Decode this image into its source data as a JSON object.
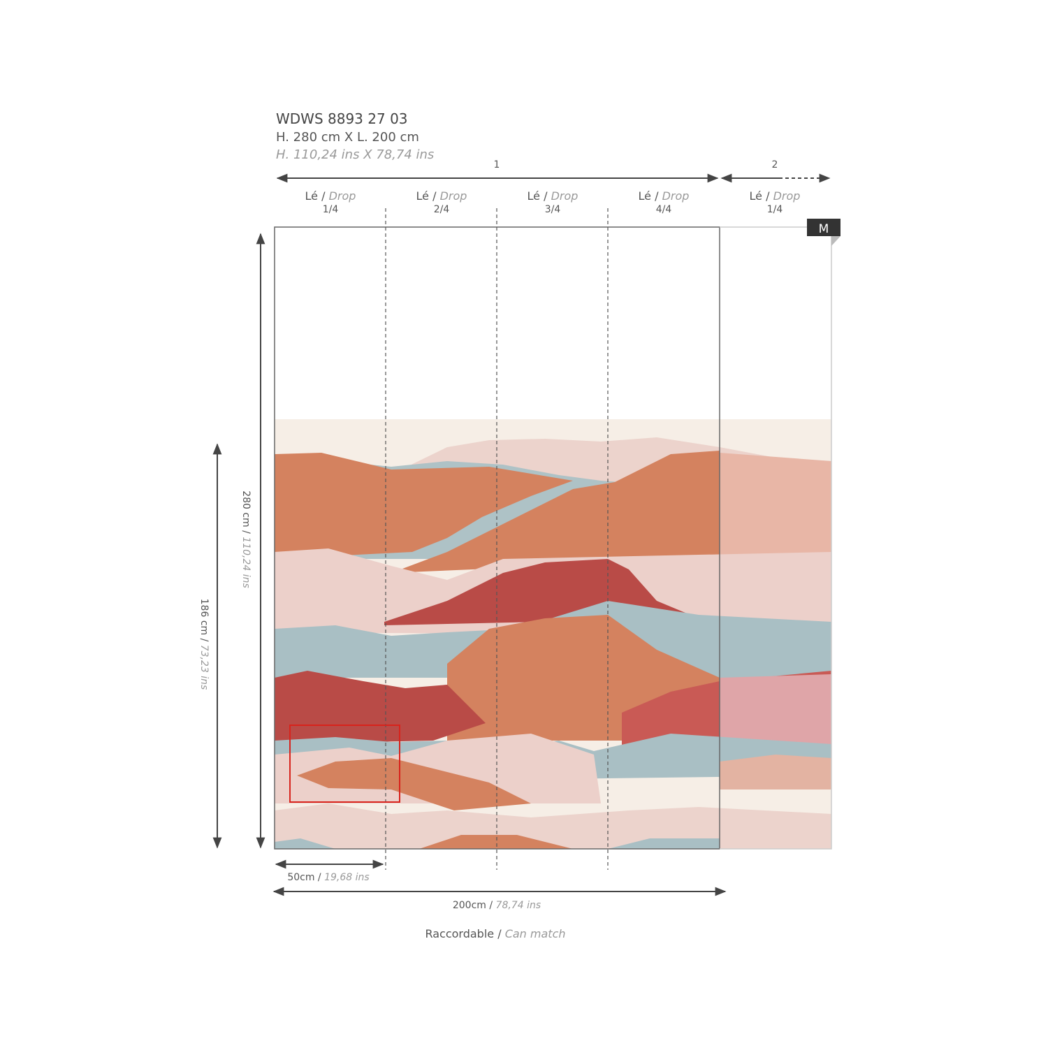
{
  "header": {
    "code": "WDWS 8893 27 03",
    "size_cm": "H. 280 cm X L. 200 cm",
    "size_ins": "H. 110,24 ins X 78,74 ins"
  },
  "panels": [
    "1",
    "2"
  ],
  "drops": [
    {
      "le": "Lé /",
      "drop": "Drop",
      "index": "1/4"
    },
    {
      "le": "Lé /",
      "drop": "Drop",
      "index": "2/4"
    },
    {
      "le": "Lé /",
      "drop": "Drop",
      "index": "3/4"
    },
    {
      "le": "Lé /",
      "drop": "Drop",
      "index": "4/4"
    },
    {
      "le": "Lé /",
      "drop": "Drop",
      "index": "1/4"
    }
  ],
  "badge": "M",
  "height_total": {
    "cm": "280 cm /",
    "ins": "110,24 ins"
  },
  "height_pattern": {
    "cm": "186 cm /",
    "ins": "73,23 ins"
  },
  "width_drop": {
    "cm": "50cm /",
    "ins": "19,68 ins"
  },
  "width_total": {
    "cm": "200cm /",
    "ins": "78,74 ins"
  },
  "match": {
    "fr": "Raccordable /",
    "en": "Can match"
  }
}
